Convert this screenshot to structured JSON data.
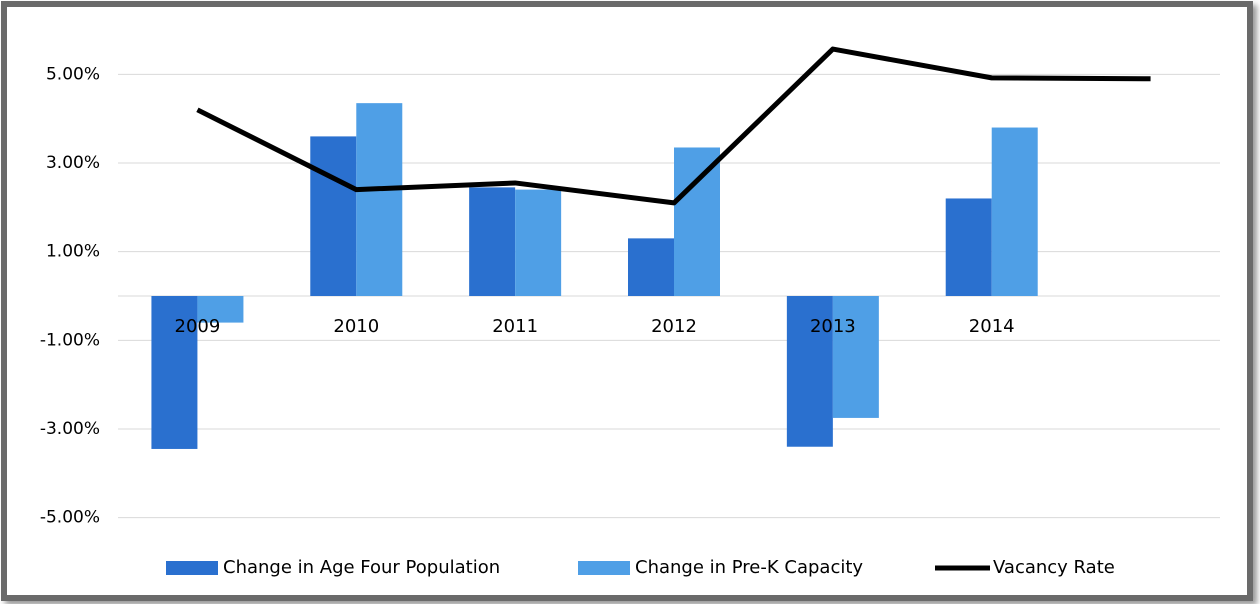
{
  "chart_data": {
    "type": "bar_line",
    "categories": [
      "2009",
      "2010",
      "2011",
      "2012",
      "2013",
      "2014",
      null
    ],
    "series": [
      {
        "name": "Change in Age Four Population",
        "type": "bar",
        "color": "#2a70cf",
        "values": [
          -3.45,
          3.6,
          2.45,
          1.3,
          -3.4,
          2.2,
          null
        ]
      },
      {
        "name": "Change in Pre-K Capacity",
        "type": "bar",
        "color": "#4f9fe6",
        "values": [
          -0.6,
          4.35,
          2.4,
          3.35,
          -2.75,
          3.8,
          null
        ]
      },
      {
        "name": "Vacancy Rate",
        "type": "line",
        "color": "#000000",
        "values": [
          4.2,
          2.4,
          2.55,
          2.1,
          5.57,
          4.92,
          4.9
        ]
      }
    ],
    "ylim": [
      -6,
      6
    ],
    "yticks": [
      {
        "value": 5,
        "label": "5.00%"
      },
      {
        "value": 3,
        "label": "3.00%"
      },
      {
        "value": 1,
        "label": "1.00%"
      },
      {
        "value": -1,
        "label": "-1.00%"
      },
      {
        "value": -3,
        "label": "-3.00%"
      },
      {
        "value": -5,
        "label": "-5.00%"
      }
    ],
    "grid": true,
    "legend": "bottom"
  }
}
